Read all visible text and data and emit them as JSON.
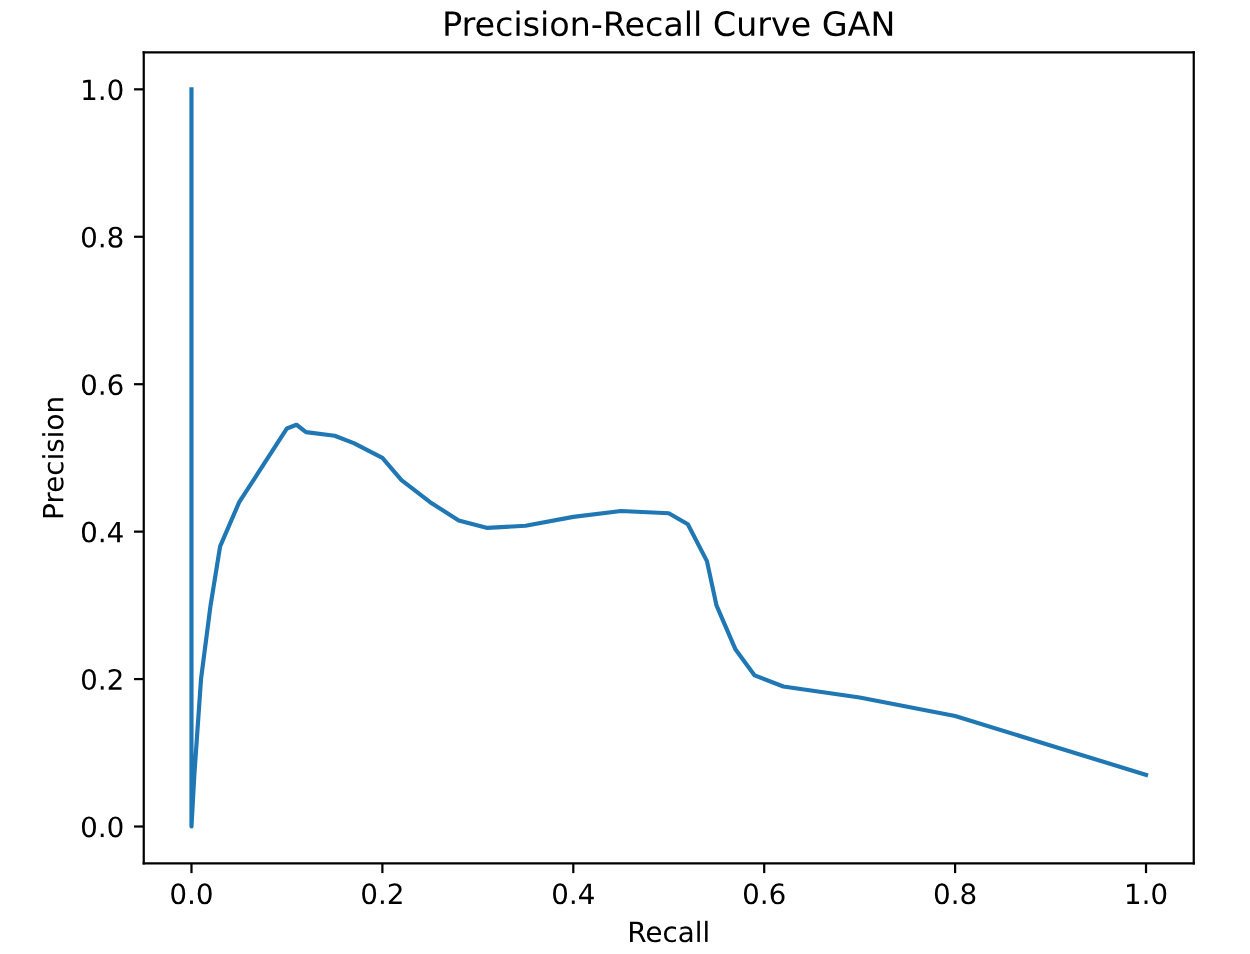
{
  "chart_data": {
    "type": "line",
    "title": "Precision-Recall Curve GAN",
    "xlabel": "Recall",
    "ylabel": "Precision",
    "series": [
      {
        "color": "#1f77b4",
        "x": [
          0,
          0,
          0.003,
          0.01,
          0.02,
          0.03,
          0.05,
          0.07,
          0.09,
          0.1,
          0.11,
          0.12,
          0.15,
          0.17,
          0.2,
          0.22,
          0.25,
          0.28,
          0.31,
          0.35,
          0.4,
          0.45,
          0.5,
          0.52,
          0.54,
          0.55,
          0.57,
          0.59,
          0.62,
          0.7,
          0.8,
          0.9,
          1.0
        ],
        "values": [
          1.0,
          0.0,
          0.07,
          0.2,
          0.3,
          0.38,
          0.44,
          0.48,
          0.52,
          0.54,
          0.545,
          0.535,
          0.53,
          0.52,
          0.5,
          0.47,
          0.44,
          0.415,
          0.405,
          0.408,
          0.42,
          0.428,
          0.425,
          0.41,
          0.36,
          0.3,
          0.24,
          0.205,
          0.19,
          0.175,
          0.15,
          0.11,
          0.07
        ]
      }
    ],
    "xlim": [
      -0.05,
      1.05
    ],
    "ylim": [
      -0.05,
      1.05
    ],
    "xticks": [
      {
        "value": 0,
        "label": "0.0"
      },
      0.2,
      0.4,
      0.6,
      0.8,
      {
        "value": 1,
        "label": "1.0"
      }
    ],
    "yticks": [
      {
        "value": 0,
        "label": "0.0"
      },
      0.2,
      0.4,
      0.6,
      0.8,
      {
        "value": 1,
        "label": "1.0"
      }
    ],
    "grid": false,
    "legend": false,
    "marker": "none",
    "line_style": "solid"
  }
}
